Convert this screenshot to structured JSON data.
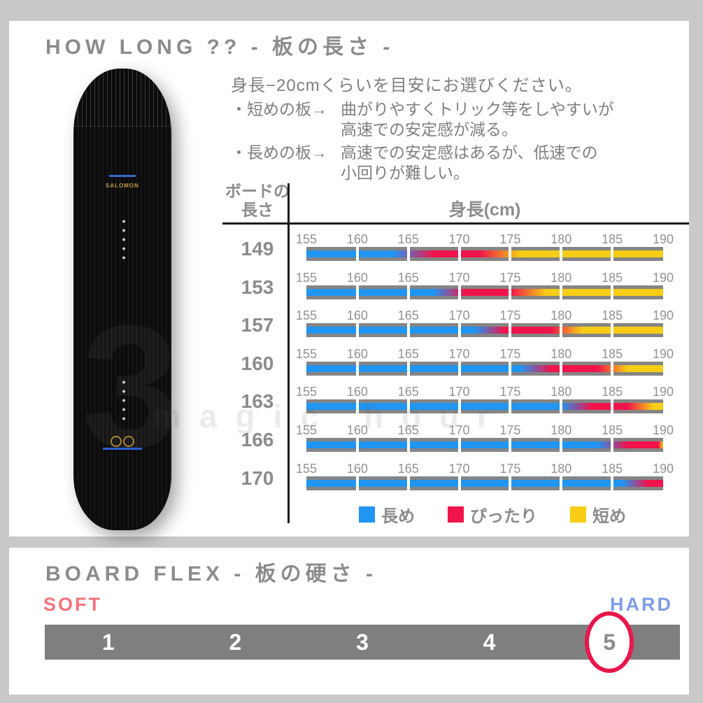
{
  "page": {
    "bg": "#c9c9c9",
    "watermark": "magic hour"
  },
  "how_long": {
    "title": "HOW LONG ?? - 板の長さ -",
    "intro": "身長−20cmくらいを目安にお選びください。",
    "bullets": [
      {
        "label": "・短めの板→",
        "text": "曲がりやすくトリック等をしやすいが\n高速での安定感が減る。"
      },
      {
        "label": "・長めの板→",
        "text": "高速での安定感はあるが、低速での\n小回りが難しい。"
      }
    ],
    "board_brand": "SALOMON",
    "board_graphic_number": "3"
  },
  "board_flex": {
    "title": "BOARD FLEX - 板の硬さ -",
    "soft_label": "SOFT",
    "hard_label": "HARD"
  },
  "colors": {
    "blue": "#2095F2",
    "red": "#F1134B",
    "yellow": "#F7CD15",
    "bar_gray": "#858585",
    "flex_bar": "#7F7F7F",
    "soft": "#F2737F",
    "hard": "#7E9DE6",
    "circle": "#E8174B",
    "title_gray": "#8C8C8C",
    "text_gray": "#7F7F7F"
  },
  "chart_data": [
    {
      "type": "heatmap",
      "x_label": "身長(cm)",
      "row_axis_label": "ボードの\n長さ",
      "x_ticks": [
        155,
        160,
        165,
        170,
        175,
        180,
        185,
        190
      ],
      "x_range": [
        155,
        190
      ],
      "unit": "cm",
      "rows": [
        {
          "length": "149",
          "blue_end": 163.5,
          "red_start": 167.5,
          "red_end": 172,
          "yellow_start": 176
        },
        {
          "length": "153",
          "blue_end": 167.5,
          "red_start": 170.5,
          "red_end": 175,
          "yellow_start": 178.5
        },
        {
          "length": "157",
          "blue_end": 171.5,
          "red_start": 174.5,
          "red_end": 179,
          "yellow_start": 182
        },
        {
          "length": "160",
          "blue_end": 176,
          "red_start": 179,
          "red_end": 183.5,
          "yellow_start": 186.5
        },
        {
          "length": "163",
          "blue_end": 180,
          "red_start": 183,
          "red_end": 186.5,
          "yellow_start": 189
        },
        {
          "length": "166",
          "blue_end": 183.5,
          "red_start": 186.5,
          "red_end": 189.5,
          "yellow_start": 190
        },
        {
          "length": "170",
          "blue_end": 186,
          "red_start": 188.5,
          "red_end": 190,
          "yellow_start": 190
        }
      ],
      "legend": [
        {
          "label": "長め",
          "color": "#2095F2"
        },
        {
          "label": "ぴったり",
          "color": "#F1134B"
        },
        {
          "label": "短め",
          "color": "#F7CD15"
        }
      ]
    },
    {
      "type": "bar",
      "title": "BOARD FLEX - 板の硬さ -",
      "categories": [
        "1",
        "2",
        "3",
        "4",
        "5"
      ],
      "selected": "5",
      "min_label": "SOFT",
      "max_label": "HARD"
    }
  ]
}
